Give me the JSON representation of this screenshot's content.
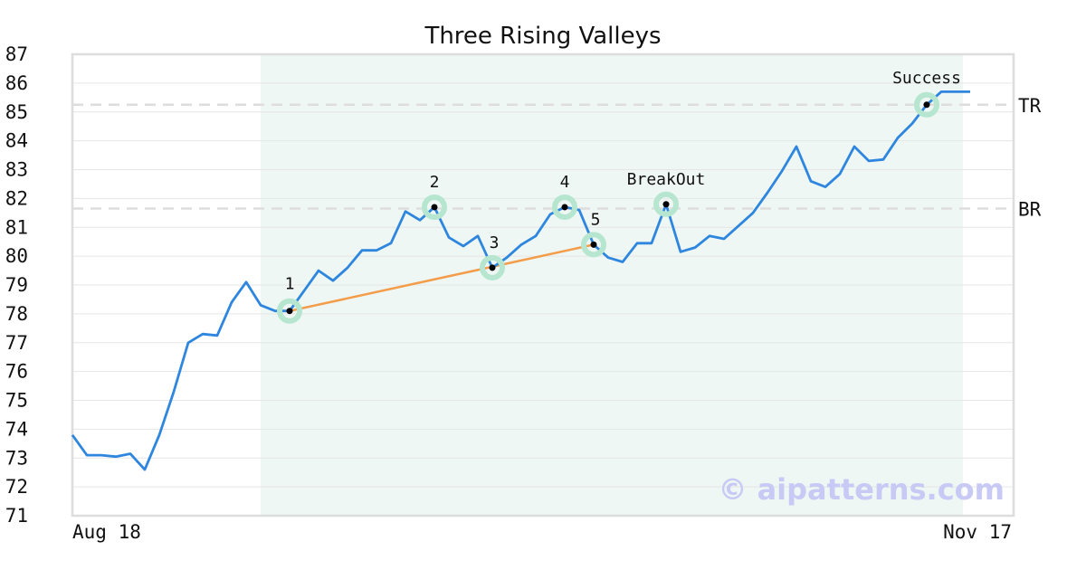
{
  "chart_data": {
    "type": "line",
    "title": "Three Rising Valleys",
    "ylim": [
      71,
      87
    ],
    "yticks": [
      71,
      72,
      73,
      74,
      75,
      76,
      77,
      78,
      79,
      80,
      81,
      82,
      83,
      84,
      85,
      86,
      87
    ],
    "xticks": [
      "Aug 18",
      "Nov 17"
    ],
    "grid": "horizontal",
    "series": [
      {
        "values": [
          73.8,
          73.1,
          73.1,
          73.05,
          73.15,
          72.6,
          73.8,
          75.3,
          77.0,
          77.3,
          77.25,
          78.4,
          79.1,
          78.3,
          78.1,
          78.1,
          78.8,
          79.5,
          79.15,
          79.6,
          80.2,
          80.2,
          80.45,
          81.55,
          81.25,
          81.7,
          80.65,
          80.35,
          80.7,
          79.6,
          79.95,
          80.4,
          80.7,
          81.45,
          81.7,
          81.6,
          80.4,
          79.95,
          79.8,
          80.45,
          80.45,
          81.8,
          80.15,
          80.3,
          80.7,
          80.6,
          81.05,
          81.5,
          82.2,
          82.95,
          83.8,
          82.6,
          82.4,
          82.85,
          83.8,
          83.3,
          83.35,
          84.1,
          84.6,
          85.25,
          85.7,
          85.7,
          85.7
        ]
      }
    ],
    "highlight_range": [
      13,
      61
    ],
    "resistance_levels": [
      {
        "label": "TR",
        "value": 85.25
      },
      {
        "label": "BR",
        "value": 81.65
      }
    ],
    "trendline": {
      "from_index": 15,
      "to_index": 36
    },
    "annotations": [
      {
        "label": "1",
        "index": 15
      },
      {
        "label": "2",
        "index": 25
      },
      {
        "label": "3",
        "index": 29
      },
      {
        "label": "4",
        "index": 34
      },
      {
        "label": "5",
        "index": 36
      },
      {
        "label": "BreakOut",
        "index": 41
      },
      {
        "label": "Success",
        "index": 59
      }
    ],
    "watermark": "© aipatterns.com",
    "colors": {
      "line": "#2e86de",
      "trendline": "#f39c4a",
      "marker_ring": "#b6e6cf",
      "marker_dot": "#000000",
      "shade": "#eef7f3",
      "level_line": "#dddddd",
      "frame": "#dddddd"
    }
  }
}
